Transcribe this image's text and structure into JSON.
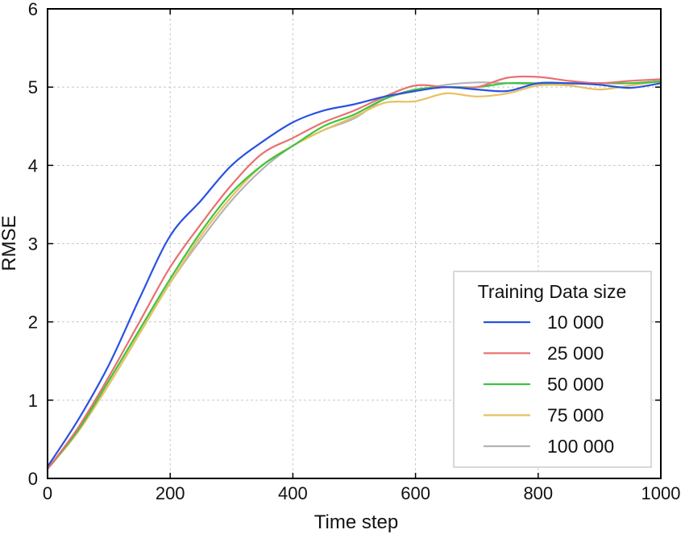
{
  "chart_data": {
    "type": "line",
    "title": "",
    "xlabel": "Time step",
    "ylabel": "RMSE",
    "xlim": [
      0,
      1000
    ],
    "ylim": [
      0,
      6
    ],
    "xticks": [
      "0",
      "200",
      "400",
      "600",
      "800",
      "1000"
    ],
    "yticks": [
      "0",
      "1",
      "2",
      "3",
      "4",
      "5",
      "6"
    ],
    "grid": true,
    "legend": {
      "title": "Training Data size",
      "position": "lower-right"
    },
    "x": [
      0,
      50,
      100,
      150,
      200,
      250,
      300,
      350,
      400,
      450,
      500,
      550,
      600,
      650,
      700,
      750,
      800,
      850,
      900,
      950,
      1000
    ],
    "series": [
      {
        "name": "10 000",
        "color": "#2a52e0",
        "values": [
          0.15,
          0.75,
          1.45,
          2.3,
          3.1,
          3.55,
          4.0,
          4.3,
          4.55,
          4.7,
          4.78,
          4.88,
          4.95,
          5.0,
          4.97,
          4.95,
          5.05,
          5.05,
          5.03,
          4.99,
          5.05
        ]
      },
      {
        "name": "25 000",
        "color": "#e97070",
        "values": [
          0.12,
          0.65,
          1.3,
          2.0,
          2.7,
          3.25,
          3.75,
          4.15,
          4.35,
          4.55,
          4.7,
          4.88,
          5.02,
          5.0,
          5.0,
          5.12,
          5.13,
          5.08,
          5.05,
          5.08,
          5.1
        ]
      },
      {
        "name": "50 000",
        "color": "#3ec43e",
        "values": [
          0.12,
          0.62,
          1.25,
          1.9,
          2.55,
          3.15,
          3.65,
          4.0,
          4.25,
          4.5,
          4.65,
          4.85,
          4.97,
          5.0,
          5.0,
          5.05,
          5.05,
          5.05,
          5.05,
          5.05,
          5.07
        ]
      },
      {
        "name": "75 000",
        "color": "#e8c060",
        "values": [
          0.12,
          0.6,
          1.2,
          1.85,
          2.5,
          3.1,
          3.6,
          4.0,
          4.25,
          4.45,
          4.62,
          4.8,
          4.82,
          4.92,
          4.88,
          4.92,
          5.02,
          5.02,
          4.97,
          5.02,
          5.08
        ]
      },
      {
        "name": "100 000",
        "color": "#b4b4b4",
        "values": [
          0.12,
          0.6,
          1.2,
          1.85,
          2.5,
          3.05,
          3.55,
          3.95,
          4.25,
          4.45,
          4.6,
          4.85,
          4.95,
          5.03,
          5.06,
          5.05,
          5.04,
          5.04,
          5.05,
          5.05,
          5.08
        ]
      }
    ]
  }
}
